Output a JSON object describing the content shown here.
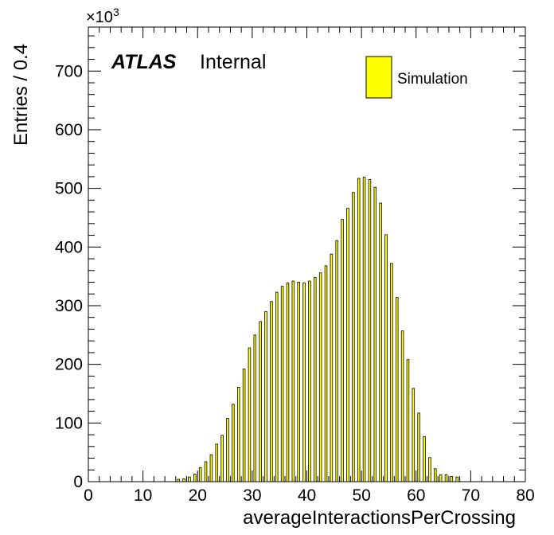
{
  "chart_data": {
    "type": "bar",
    "xlabel": "averageInteractionsPerCrossing",
    "ylabel": "Entries / 0.4",
    "y_exponent_label": "×10",
    "y_exponent_power": "3",
    "xlim": [
      0,
      80
    ],
    "ylim": [
      0,
      775
    ],
    "x_ticks": [
      "0",
      "10",
      "20",
      "30",
      "40",
      "50",
      "60",
      "70",
      "80"
    ],
    "y_ticks": [
      "0",
      "100",
      "200",
      "300",
      "400",
      "500",
      "600",
      "700"
    ],
    "bar_width": 0.4,
    "bar_color": "#ffff00",
    "atlas_label": "ATLAS",
    "status_label": "Internal",
    "legend_position": "top-right",
    "series": [
      {
        "name": "Simulation",
        "x": [
          16.5,
          17.5,
          18.5,
          19.5,
          20.5,
          21.5,
          22.5,
          23.5,
          24.5,
          25.5,
          26.5,
          27.5,
          28.5,
          29.5,
          30.5,
          31.5,
          32.5,
          33.5,
          34.5,
          35.5,
          36.5,
          37.5,
          38.5,
          39.5,
          40.5,
          41.5,
          42.5,
          43.5,
          44.5,
          45.5,
          46.5,
          47.5,
          48.5,
          49.5,
          50.5,
          51.5,
          52.5,
          53.5,
          54.5,
          55.5,
          56.5,
          57.5,
          58.5,
          59.5,
          60.5,
          61.5,
          62.5,
          63.5,
          64.5,
          65.5,
          66.5,
          67.5
        ],
        "values": [
          4,
          5,
          8,
          13,
          24,
          34,
          46,
          64,
          79,
          108,
          132,
          161,
          192,
          228,
          250,
          273,
          290,
          307,
          323,
          333,
          339,
          342,
          340,
          339,
          342,
          348,
          356,
          368,
          388,
          411,
          447,
          466,
          493,
          517,
          519,
          515,
          502,
          475,
          421,
          372,
          314,
          257,
          208,
          159,
          117,
          77,
          41,
          22,
          12,
          12,
          9,
          8
        ]
      }
    ]
  }
}
